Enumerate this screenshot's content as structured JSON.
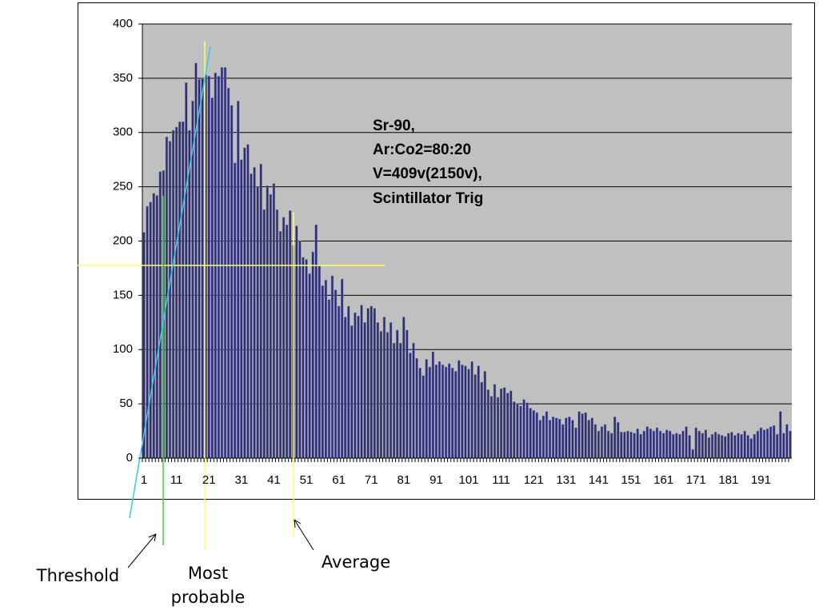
{
  "chart_data": {
    "type": "bar",
    "annotation": [
      "Sr-90,",
      "Ar:Co2=80:20",
      "V=409v(2150v),",
      "Scintillator Trig"
    ],
    "markers": [
      "Threshold",
      "Most probable",
      "Average"
    ],
    "categories": [
      1,
      null,
      null,
      null,
      null,
      null,
      null,
      null,
      null,
      null,
      11,
      null,
      null,
      null,
      null,
      null,
      null,
      null,
      null,
      null,
      21,
      null,
      null,
      null,
      null,
      null,
      null,
      null,
      null,
      null,
      31,
      null,
      null,
      null,
      null,
      null,
      null,
      null,
      null,
      null,
      41,
      null,
      null,
      null,
      null,
      null,
      null,
      null,
      null,
      null,
      51,
      null,
      null,
      null,
      null,
      null,
      null,
      null,
      null,
      null,
      61,
      null,
      null,
      null,
      null,
      null,
      null,
      null,
      null,
      null,
      71,
      null,
      null,
      null,
      null,
      null,
      null,
      null,
      null,
      null,
      81,
      null,
      null,
      null,
      null,
      null,
      null,
      null,
      null,
      null,
      91,
      null,
      null,
      null,
      null,
      null,
      null,
      null,
      null,
      null,
      101,
      null,
      null,
      null,
      null,
      null,
      null,
      null,
      null,
      null,
      111,
      null,
      null,
      null,
      null,
      null,
      null,
      null,
      null,
      null,
      121,
      null,
      null,
      null,
      null,
      null,
      null,
      null,
      null,
      null,
      131,
      null,
      null,
      null,
      null,
      null,
      null,
      null,
      null,
      null,
      141,
      null,
      null,
      null,
      null,
      null,
      null,
      null,
      null,
      null,
      151,
      null,
      null,
      null,
      null,
      null,
      null,
      null,
      null,
      null,
      161,
      null,
      null,
      null,
      null,
      null,
      null,
      null,
      null,
      null,
      171,
      null,
      null,
      null,
      null,
      null,
      null,
      null,
      null,
      null,
      181,
      null,
      null,
      null,
      null,
      null,
      null,
      null,
      null,
      null,
      191,
      null,
      null,
      null,
      null,
      null,
      null,
      null,
      null,
      null
    ],
    "values": [
      208,
      232,
      236,
      244,
      242,
      264,
      265,
      296,
      292,
      302,
      305,
      310,
      310,
      346,
      302,
      329,
      364,
      349,
      350,
      353,
      352,
      332,
      355,
      352,
      360,
      360,
      341,
      325,
      272,
      329,
      275,
      286,
      289,
      262,
      268,
      250,
      271,
      229,
      251,
      243,
      253,
      229,
      209,
      222,
      215,
      228,
      196,
      214,
      200,
      185,
      183,
      170,
      190,
      215,
      177,
      159,
      164,
      146,
      168,
      155,
      140,
      165,
      130,
      140,
      122,
      134,
      131,
      141,
      125,
      138,
      140,
      138,
      125,
      117,
      130,
      116,
      125,
      106,
      118,
      106,
      130,
      118,
      97,
      106,
      92,
      83,
      76,
      91,
      84,
      98,
      86,
      89,
      86,
      84,
      87,
      83,
      80,
      90,
      86,
      85,
      82,
      89,
      77,
      85,
      70,
      80,
      63,
      57,
      68,
      56,
      64,
      65,
      60,
      62,
      52,
      50,
      48,
      54,
      51,
      46,
      44,
      42,
      35,
      39,
      43,
      35,
      38,
      37,
      36,
      31,
      37,
      38,
      35,
      28,
      43,
      41,
      42,
      35,
      37,
      31,
      25,
      29,
      31,
      25,
      23,
      38,
      33,
      24,
      24,
      25,
      24,
      23,
      27,
      22,
      25,
      29,
      27,
      25,
      28,
      25,
      23,
      26,
      25,
      22,
      23,
      22,
      25,
      29,
      21,
      8,
      28,
      25,
      23,
      26,
      19,
      22,
      24,
      22,
      21,
      20,
      23,
      24,
      21,
      23,
      22,
      25,
      21,
      18,
      22,
      25,
      28,
      26,
      27,
      29,
      30,
      22,
      43,
      23,
      31,
      25
    ],
    "color": "#2e2e72",
    "ylim": [
      0,
      400
    ],
    "yticks": [
      0,
      50,
      100,
      150,
      200,
      250,
      300,
      350,
      400
    ],
    "grid": true
  }
}
